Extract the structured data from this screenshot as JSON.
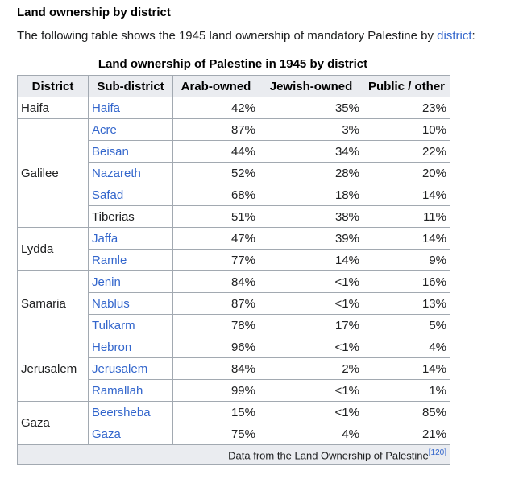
{
  "section": {
    "heading": "Land ownership by district",
    "intro_text": "The following table shows the 1945 land ownership of mandatory Palestine by ",
    "intro_link": "district",
    "intro_end": ":"
  },
  "table": {
    "caption": "Land ownership of Palestine in 1945 by district",
    "headers": [
      "District",
      "Sub-district",
      "Arab-owned",
      "Jewish-owned",
      "Public / other"
    ],
    "districts": [
      {
        "name": "Haifa",
        "rows": [
          {
            "sub": "Haifa",
            "arab": "42%",
            "jewish": "35%",
            "public": "23%"
          }
        ]
      },
      {
        "name": "Galilee",
        "rows": [
          {
            "sub": "Acre",
            "arab": "87%",
            "jewish": "3%",
            "public": "10%"
          },
          {
            "sub": "Beisan",
            "arab": "44%",
            "jewish": "34%",
            "public": "22%"
          },
          {
            "sub": "Nazareth",
            "arab": "52%",
            "jewish": "28%",
            "public": "20%"
          },
          {
            "sub": "Safad",
            "arab": "68%",
            "jewish": "18%",
            "public": "14%"
          },
          {
            "sub": "Tiberias",
            "arab": "51%",
            "jewish": "38%",
            "public": "11%"
          }
        ]
      },
      {
        "name": "Lydda",
        "rows": [
          {
            "sub": "Jaffa",
            "arab": "47%",
            "jewish": "39%",
            "public": "14%"
          },
          {
            "sub": "Ramle",
            "arab": "77%",
            "jewish": "14%",
            "public": "9%"
          }
        ]
      },
      {
        "name": "Samaria",
        "rows": [
          {
            "sub": "Jenin",
            "arab": "84%",
            "jewish": "<1%",
            "public": "16%"
          },
          {
            "sub": "Nablus",
            "arab": "87%",
            "jewish": "<1%",
            "public": "13%"
          },
          {
            "sub": "Tulkarm",
            "arab": "78%",
            "jewish": "17%",
            "public": "5%"
          }
        ]
      },
      {
        "name": "Jerusalem",
        "rows": [
          {
            "sub": "Hebron",
            "arab": "96%",
            "jewish": "<1%",
            "public": "4%"
          },
          {
            "sub": "Jerusalem",
            "arab": "84%",
            "jewish": "2%",
            "public": "14%"
          },
          {
            "sub": "Ramallah",
            "arab": "99%",
            "jewish": "<1%",
            "public": "1%"
          }
        ]
      },
      {
        "name": "Gaza",
        "rows": [
          {
            "sub": "Beersheba",
            "arab": "15%",
            "jewish": "<1%",
            "public": "85%"
          },
          {
            "sub": "Gaza",
            "arab": "75%",
            "jewish": "4%",
            "public": "21%"
          }
        ]
      }
    ],
    "footer_text": "Data from the Land Ownership of Palestine",
    "footer_ref": "[120]"
  },
  "colors": {
    "link": "#3366cc",
    "header_bg": "#eaecf0",
    "border": "#a2a9b1",
    "text": "#202122"
  }
}
